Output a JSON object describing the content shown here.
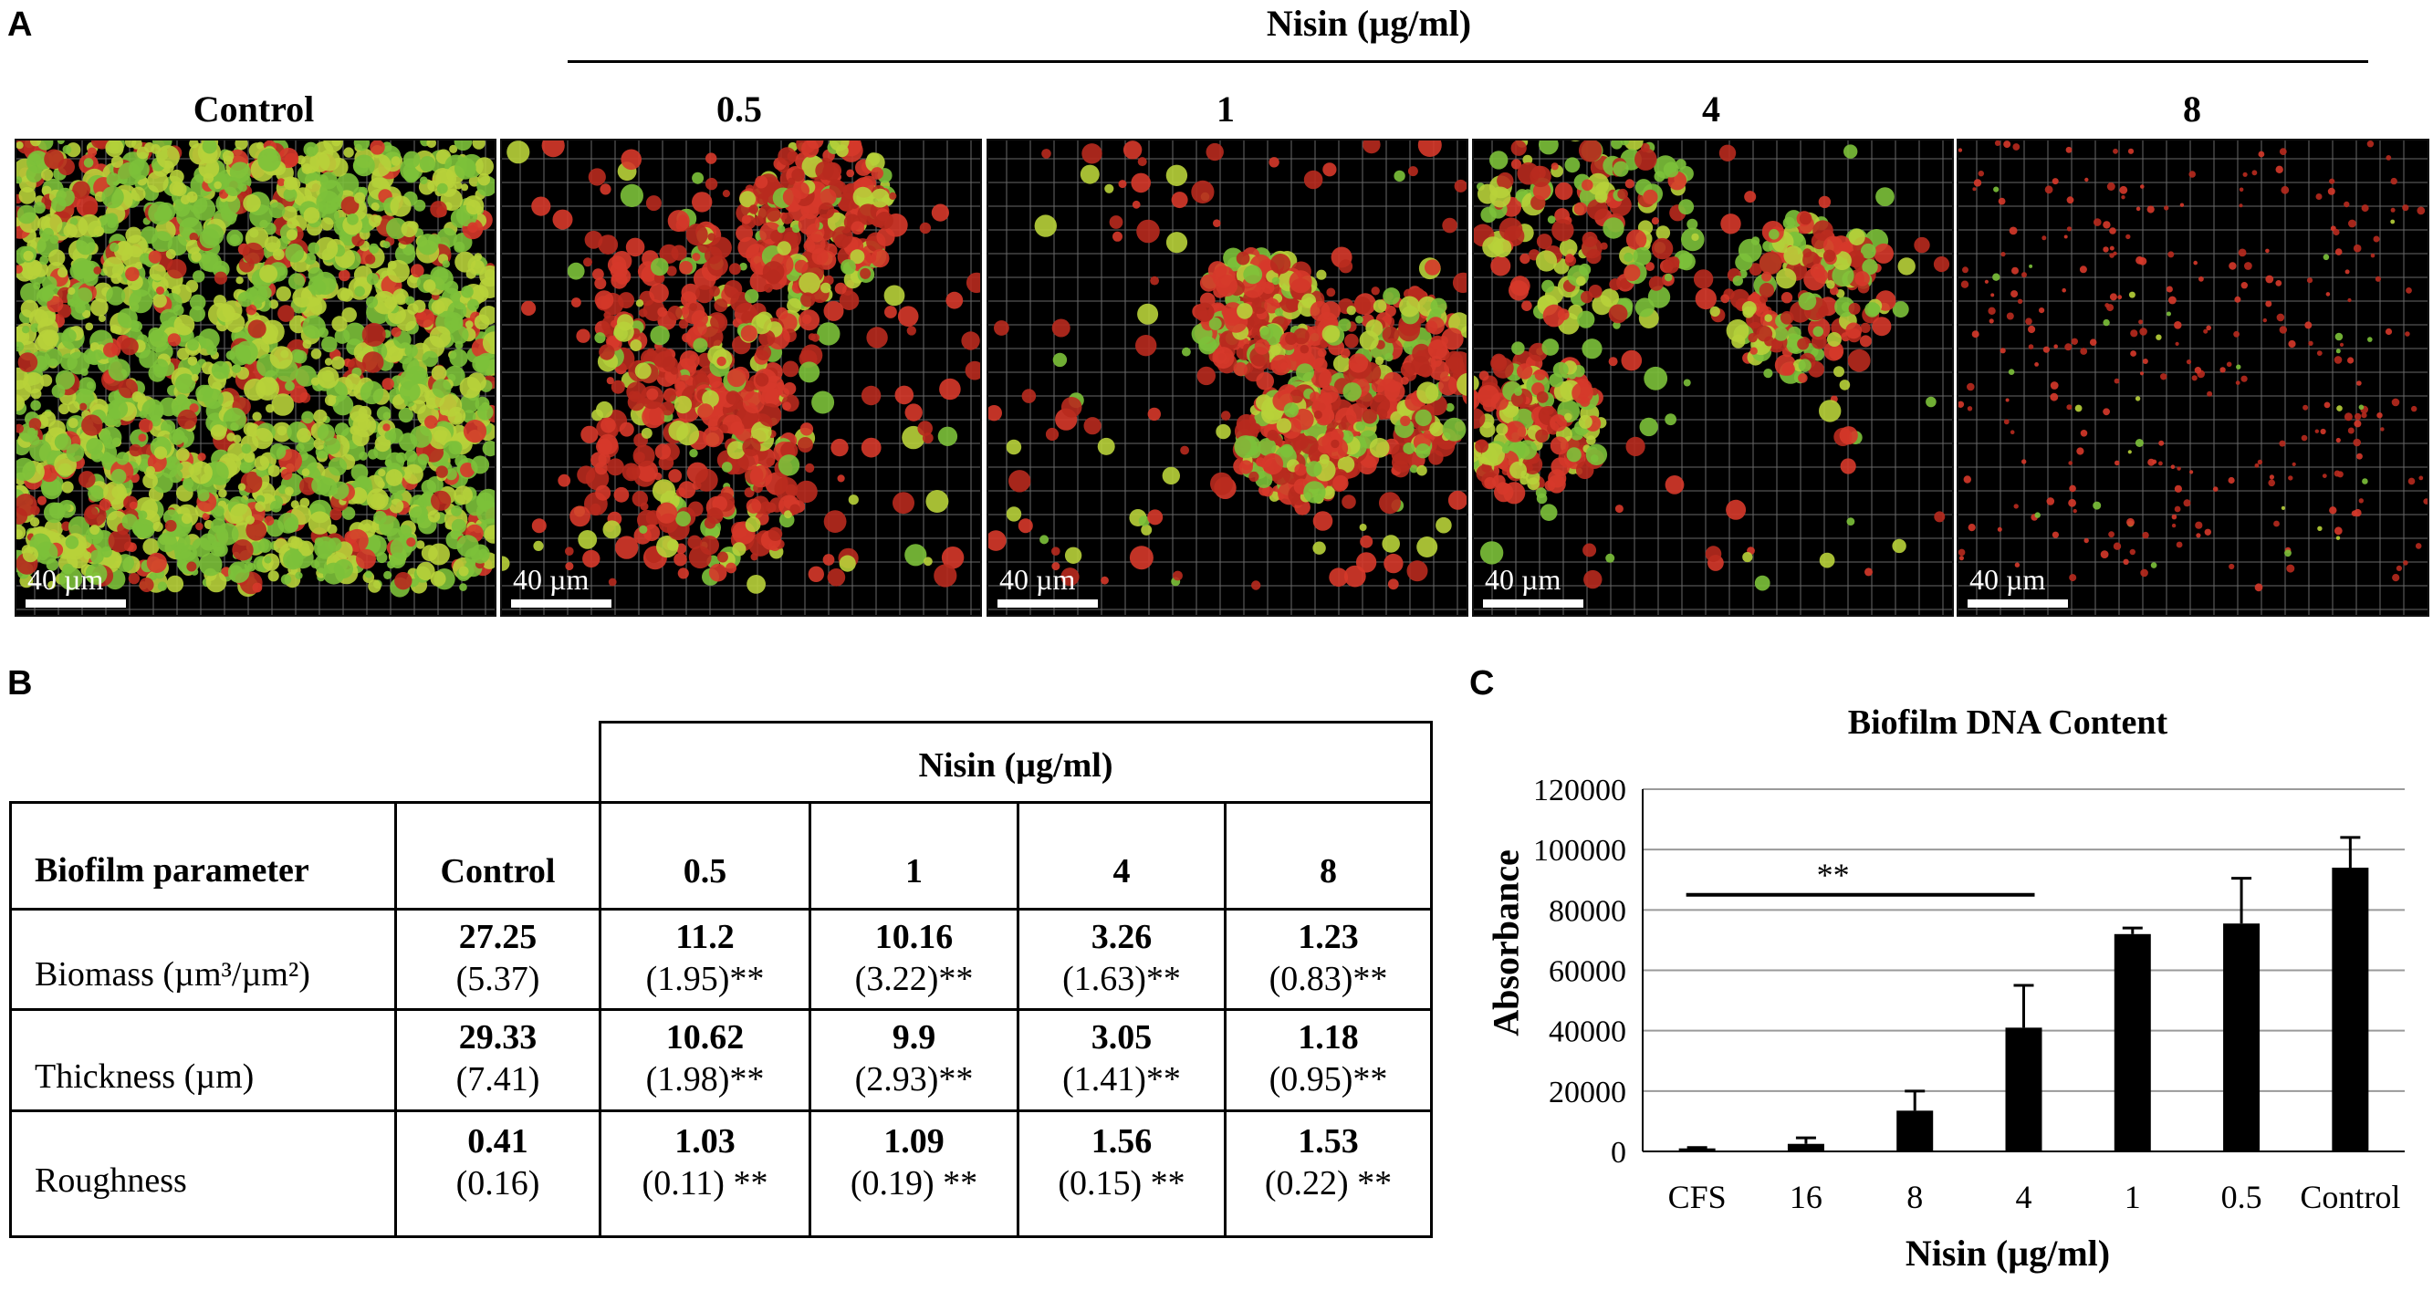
{
  "panel_a": {
    "letter": "A",
    "nisin_header": "Nisin (µg/ml)",
    "images": [
      {
        "label": "Control",
        "scale": "40 µm",
        "density": 1.0,
        "red_fraction": 0.18
      },
      {
        "label": "0.5",
        "scale": "40 µm",
        "density": 0.35,
        "red_fraction": 0.75
      },
      {
        "label": "1",
        "scale": "40 µm",
        "density": 0.4,
        "red_fraction": 0.65
      },
      {
        "label": "4",
        "scale": "40 µm",
        "density": 0.25,
        "red_fraction": 0.5
      },
      {
        "label": "8",
        "scale": "40 µm",
        "density": 0.05,
        "red_fraction": 0.9
      }
    ]
  },
  "panel_b": {
    "letter": "B",
    "nisin_header": "Nisin (µg/ml)",
    "param_header": "Biofilm parameter",
    "columns": [
      "Control",
      "0.5",
      "1",
      "4",
      "8"
    ],
    "rows": [
      {
        "label": "Biomass (µm³/µm²)",
        "values": [
          "27.25",
          "11.2",
          "10.16",
          "3.26",
          "1.23"
        ],
        "sds": [
          "(5.37)",
          "(1.95)**",
          "(3.22)**",
          "(1.63)**",
          "(0.83)**"
        ]
      },
      {
        "label": "Thickness (µm)",
        "values": [
          "29.33",
          "10.62",
          "9.9",
          "3.05",
          "1.18"
        ],
        "sds": [
          "(7.41)",
          "(1.98)**",
          "(2.93)**",
          "(1.41)**",
          "(0.95)**"
        ]
      },
      {
        "label": "Roughness",
        "values": [
          "0.41",
          "1.03",
          "1.09",
          "1.56",
          "1.53"
        ],
        "sds": [
          "(0.16)",
          "(0.11) **",
          "(0.19) **",
          "(0.15) **",
          "(0.22) **"
        ]
      }
    ]
  },
  "panel_c": {
    "letter": "C",
    "significance": "**"
  },
  "chart_data": {
    "type": "bar",
    "title": "Biofilm DNA Content",
    "xlabel": "Nisin (µg/ml)",
    "ylabel": "Absorbance",
    "categories": [
      "CFS",
      "16",
      "8",
      "4",
      "1",
      "0.5",
      "Control"
    ],
    "values": [
      1000,
      2500,
      13500,
      41000,
      72000,
      75500,
      94000
    ],
    "errors": [
      300,
      2000,
      6500,
      14000,
      2000,
      15000,
      10000
    ],
    "ylim": [
      0,
      120000
    ],
    "yticks": [
      "0",
      "20000",
      "40000",
      "60000",
      "80000",
      "100000",
      "120000"
    ],
    "grid": true,
    "bar_color": "#000000"
  }
}
